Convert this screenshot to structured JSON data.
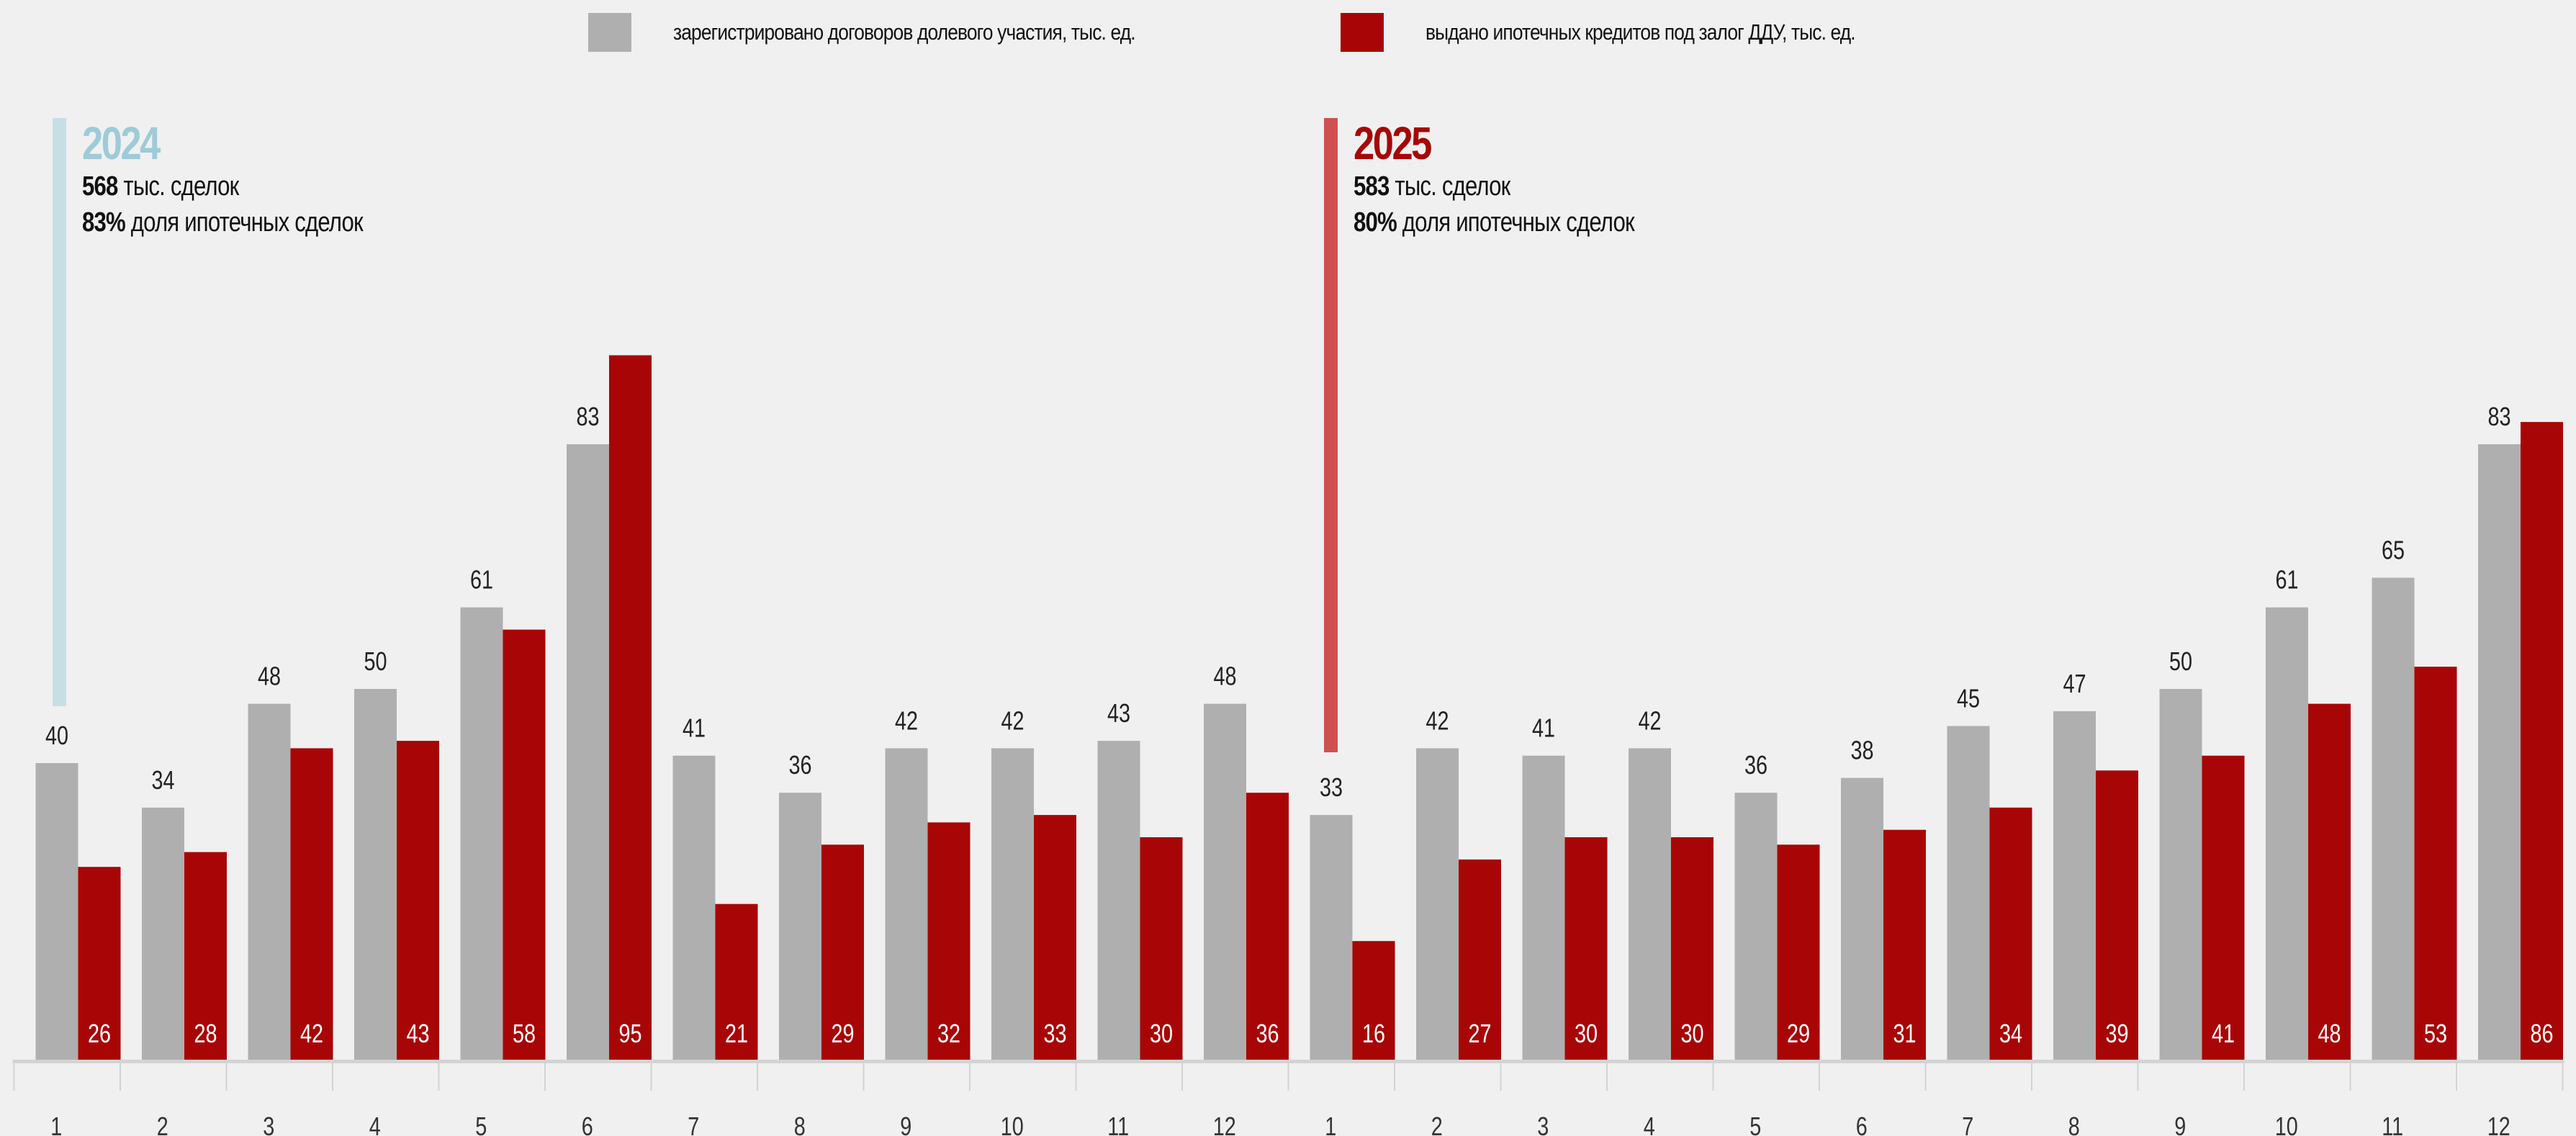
{
  "legend": [
    {
      "label": "зарегистрировано договоров долевого участия, тыс. ед.",
      "color": "#afafaf"
    },
    {
      "label": "выдано ипотечных кредитов под залог ДДУ, тыс. ед.",
      "color": "#a80606"
    }
  ],
  "annotations": [
    {
      "year": "2024",
      "total": "568",
      "total_text": "тыс. сделок",
      "share": "83%",
      "share_text": "доля ипотечных сделок",
      "year_color": "#9ecbd8",
      "bar_color": "#c6dfe5"
    },
    {
      "year": "2025",
      "total": "583",
      "total_text": "тыс. сделок",
      "share": "80%",
      "share_text": "доля ипотечных сделок",
      "year_color": "#a80606",
      "bar_color": "#d05050"
    }
  ],
  "chart_data": {
    "type": "bar",
    "title": "",
    "xlabel": "",
    "ylabel": "",
    "ylim": [
      0,
      95
    ],
    "grid": false,
    "legend_position": "top-center",
    "categories": [
      "1",
      "2",
      "3",
      "4",
      "5",
      "6",
      "7",
      "8",
      "9",
      "10",
      "11",
      "12",
      "1",
      "2",
      "3",
      "4",
      "5",
      "6",
      "7",
      "8",
      "9",
      "10",
      "11",
      "12"
    ],
    "series": [
      {
        "name": "зарегистрировано договоров долевого участия, тыс. ед.",
        "color": "#afafaf",
        "values": [
          40,
          34,
          48,
          50,
          61,
          83,
          41,
          36,
          42,
          42,
          43,
          48,
          33,
          42,
          41,
          42,
          36,
          38,
          45,
          47,
          50,
          61,
          65,
          83
        ]
      },
      {
        "name": "выдано ипотечных кредитов под залог ДДУ, тыс. ед.",
        "color": "#a80606",
        "values": [
          26,
          28,
          42,
          43,
          58,
          95,
          21,
          29,
          32,
          33,
          30,
          36,
          16,
          27,
          30,
          30,
          29,
          31,
          34,
          39,
          41,
          48,
          53,
          86
        ]
      }
    ]
  }
}
